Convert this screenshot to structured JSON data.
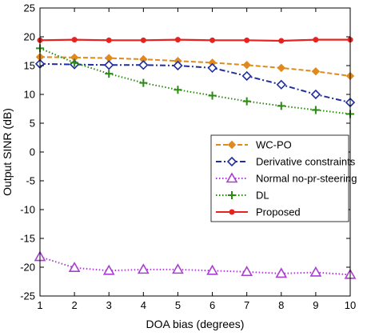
{
  "chart_data": {
    "type": "line",
    "title": "",
    "xlabel": "DOA bias (degrees)",
    "ylabel": "Output SINR (dB)",
    "xlim": [
      1,
      10
    ],
    "ylim": [
      -25,
      25
    ],
    "x": [
      1,
      2,
      3,
      4,
      5,
      6,
      7,
      8,
      9,
      10
    ],
    "x_ticks": [
      "1",
      "2",
      "3",
      "4",
      "5",
      "6",
      "7",
      "8",
      "9",
      "10"
    ],
    "y_ticks": [
      "-25",
      "-20",
      "-15",
      "-10",
      "-5",
      "0",
      "5",
      "10",
      "15",
      "20",
      "25"
    ],
    "grid": false,
    "legend_position": "center-right",
    "series": [
      {
        "name": "WC-PO",
        "color": "#e08a1e",
        "dash": "dashed",
        "marker": "diamond-filled",
        "values": [
          16.5,
          16.4,
          16.3,
          16.1,
          15.8,
          15.5,
          15.1,
          14.6,
          14.0,
          13.2
        ]
      },
      {
        "name": "Derivative  constraints",
        "color": "#1f2f9e",
        "dash": "dashdot",
        "marker": "diamond-open",
        "values": [
          15.3,
          15.2,
          15.1,
          15.1,
          15.0,
          14.6,
          13.2,
          11.7,
          10.0,
          8.6
        ]
      },
      {
        "name": "Normal no-pr-steering",
        "color": "#a83fd0",
        "dash": "dotted",
        "marker": "triangle-open",
        "values": [
          -18.2,
          -20.1,
          -20.6,
          -20.4,
          -20.4,
          -20.6,
          -20.8,
          -21.1,
          -20.9,
          -21.3
        ]
      },
      {
        "name": "DL",
        "color": "#2a8a12",
        "dash": "dotted",
        "marker": "plus",
        "values": [
          18.0,
          15.5,
          13.6,
          12.0,
          10.8,
          9.8,
          8.8,
          8.0,
          7.3,
          6.6
        ]
      },
      {
        "name": "Proposed",
        "color": "#e8231f",
        "dash": "solid",
        "marker": "dot",
        "values": [
          19.4,
          19.5,
          19.4,
          19.4,
          19.5,
          19.4,
          19.4,
          19.3,
          19.5,
          19.5
        ]
      }
    ]
  }
}
